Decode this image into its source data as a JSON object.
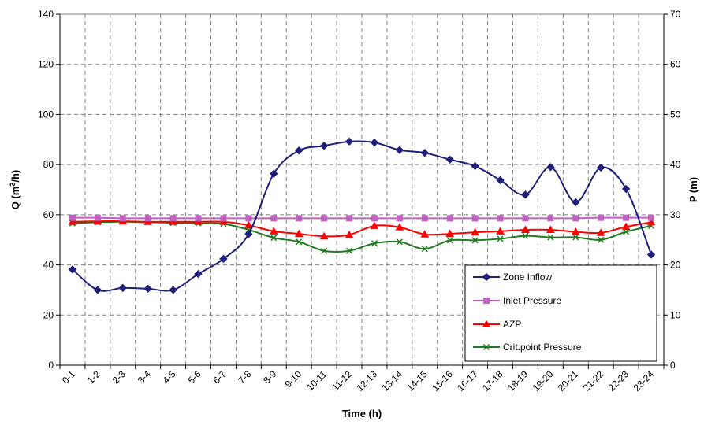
{
  "chart_data": {
    "type": "line",
    "xlabel": "Time (h)",
    "ylabel_left": "Q (m",
    "ylabel_left_sup": "3",
    "ylabel_left_end": "/h)",
    "ylabel_right": "P (m)",
    "ylim_left": [
      0,
      140
    ],
    "ylim_right": [
      0,
      70
    ],
    "yticks_left": [
      0,
      20,
      40,
      60,
      80,
      100,
      120,
      140
    ],
    "yticks_right": [
      0,
      10,
      20,
      30,
      40,
      50,
      60,
      70
    ],
    "grid": true,
    "legend_position": "bottom-right",
    "categories": [
      "0-1",
      "1-2",
      "2-3",
      "3-4",
      "4-5",
      "5-6",
      "6-7",
      "7-8",
      "8-9",
      "9-10",
      "10-11",
      "11-12",
      "12-13",
      "13-14",
      "14-15",
      "15-16",
      "16-17",
      "17-18",
      "18-19",
      "19-20",
      "20-21",
      "21-22",
      "22-23",
      "23-24"
    ],
    "series": [
      {
        "name": "Zone Inflow",
        "axis": "left",
        "color": "#1f1f7a",
        "marker": "diamond",
        "values": [
          38.2,
          30.0,
          30.8,
          30.5,
          30.0,
          36.4,
          42.4,
          52.3,
          76.4,
          85.6,
          87.5,
          89.2,
          88.8,
          85.8,
          84.7,
          82.0,
          79.4,
          73.8,
          68.0,
          79.0,
          65.0,
          78.8,
          70.3,
          44.1
        ]
      },
      {
        "name": "Inlet Pressure",
        "axis": "right",
        "color": "#c060c0",
        "marker": "square",
        "values": [
          29.4,
          29.4,
          29.3,
          29.3,
          29.3,
          29.3,
          29.3,
          29.3,
          29.3,
          29.3,
          29.3,
          29.3,
          29.3,
          29.3,
          29.3,
          29.3,
          29.3,
          29.3,
          29.3,
          29.3,
          29.3,
          29.4,
          29.4,
          29.4
        ]
      },
      {
        "name": "AZP",
        "axis": "right",
        "color": "#ff0000",
        "marker": "triangle",
        "values": [
          28.6,
          28.7,
          28.7,
          28.6,
          28.6,
          28.6,
          28.6,
          27.9,
          26.7,
          26.2,
          25.7,
          26.0,
          27.8,
          27.5,
          26.1,
          26.2,
          26.5,
          26.7,
          27.0,
          27.0,
          26.6,
          26.4,
          27.6,
          28.5
        ]
      },
      {
        "name": "Crit.point Pressure",
        "axis": "right",
        "color": "#207a20",
        "marker": "x",
        "values": [
          28.3,
          28.5,
          28.6,
          28.5,
          28.4,
          28.3,
          28.2,
          27.0,
          25.4,
          24.6,
          22.8,
          22.8,
          24.3,
          24.6,
          23.2,
          24.9,
          24.9,
          25.2,
          25.8,
          25.5,
          25.5,
          25.0,
          26.6,
          27.8
        ]
      }
    ]
  }
}
